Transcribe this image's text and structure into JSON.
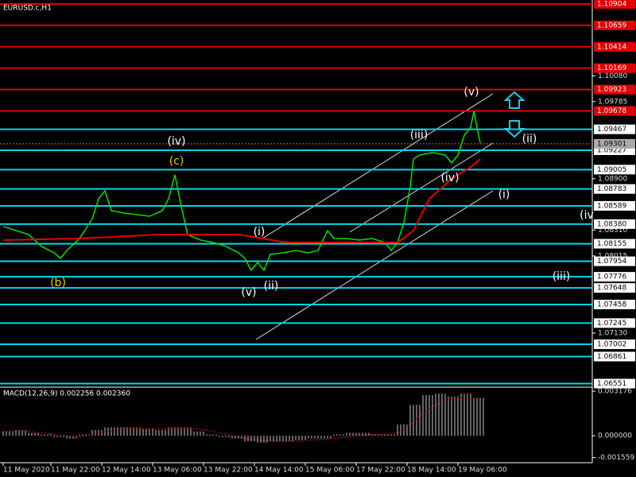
{
  "chart_data": [
    {
      "type": "line",
      "title": "EURUSD.c,H1",
      "x": [
        0,
        4,
        8,
        12,
        16,
        18,
        20,
        24,
        28,
        30,
        32,
        34,
        38,
        42,
        46,
        50,
        52,
        54,
        56,
        58,
        62,
        66,
        70,
        74,
        76,
        78,
        80,
        82,
        84,
        88,
        92,
        96,
        99,
        102,
        104,
        108,
        112,
        116,
        120,
        122,
        124,
        126,
        128,
        129,
        131,
        135,
        139,
        141,
        143,
        145,
        147,
        148,
        149,
        150
      ],
      "xlim": [
        -1,
        185
      ],
      "xticks": [
        {
          "value": 0,
          "label": "11 May 2020"
        },
        {
          "value": 15,
          "label": "11 May 22:00"
        },
        {
          "value": 31,
          "label": "12 May 14:00"
        },
        {
          "value": 47,
          "label": "13 May 06:00"
        },
        {
          "value": 63,
          "label": "13 May 22:00"
        },
        {
          "value": 79,
          "label": "14 May 14:00"
        },
        {
          "value": 95,
          "label": "15 May 06:00"
        },
        {
          "value": 111,
          "label": "17 May 22:00"
        },
        {
          "value": 127,
          "label": "18 May 14:00"
        },
        {
          "value": 143,
          "label": "19 May 06:00"
        }
      ],
      "series": [
        {
          "name": "EURUSD.c",
          "color": "#00e000",
          "values": [
            1.08352,
            1.08306,
            1.0826,
            1.08124,
            1.08051,
            1.07987,
            1.08078,
            1.08215,
            1.08443,
            1.08671,
            1.08762,
            1.08534,
            1.08507,
            1.08488,
            1.0847,
            1.08534,
            1.08671,
            1.08944,
            1.0858,
            1.0826,
            1.08197,
            1.08169,
            1.08124,
            1.08051,
            1.07987,
            1.0785,
            1.07941,
            1.0785,
            1.08033,
            1.08051,
            1.08078,
            1.08051,
            1.08078,
            1.08306,
            1.08215,
            1.08215,
            1.08197,
            1.08215,
            1.08169,
            1.08078,
            1.08169,
            1.08397,
            1.08808,
            1.09127,
            1.09172,
            1.092,
            1.09172,
            1.09081,
            1.09172,
            1.094,
            1.09491,
            1.09674,
            1.09491,
            1.09309
          ]
        },
        {
          "name": "MA",
          "color": "#e00000",
          "x": [
            0,
            24,
            49,
            74,
            89,
            124,
            129,
            134,
            141,
            147,
            150
          ],
          "values": [
            1.08197,
            1.08215,
            1.0826,
            1.0826,
            1.08169,
            1.08169,
            1.08306,
            1.08671,
            1.08899,
            1.09035,
            1.09127
          ]
        }
      ],
      "ylim": [
        1.0651,
        1.1095
      ],
      "yticks": [
        {
          "value": 1.1008,
          "label": "1.10080"
        },
        1.09785,
        {
          "value": 1.089,
          "label": "1.08900"
        },
        {
          "value": 1.0831,
          "label": "1.08310"
        },
        1.08015,
        {
          "value": 1.0713,
          "label": "1.07130"
        }
      ],
      "level_sets": [
        {
          "color": "#e00000",
          "values": [
            1.10904,
            1.10659,
            1.10414,
            1.10169,
            1.09923,
            1.09678
          ]
        },
        {
          "color": "#00d8e8",
          "values": [
            1.09467,
            1.09227,
            1.09005,
            1.08783,
            1.08589,
            {
              "value": 1.0838,
              "label": "1.08380"
            },
            1.08155,
            1.07954,
            1.07776,
            1.07648,
            1.07458,
            1.07245,
            1.07002,
            1.06861,
            1.06551
          ]
        }
      ],
      "last_price": 1.09301,
      "annotations": [
        {
          "text": "(iv)",
          "color": "#ffffff"
        },
        {
          "text": "(c)",
          "color": "#e8d000"
        },
        {
          "text": "(b)",
          "color": "#e8d000"
        },
        {
          "text": "(i)",
          "color": "#ffffff"
        },
        {
          "text": "(v)",
          "color": "#ffffff"
        },
        {
          "text": "(ii)",
          "color": "#ffffff"
        },
        {
          "text": "(iii)",
          "color": "#ffffff"
        },
        {
          "text": "(iv)",
          "color": "#ffffff"
        },
        {
          "text": "(v)",
          "color": "#ffffff"
        },
        {
          "text": "(ii)",
          "color": "#ffffff"
        },
        {
          "text": "(i)",
          "color": "#ffffff"
        },
        {
          "text": "(iv",
          "color": "#ffffff"
        },
        {
          "text": "(iii)",
          "color": "#ffffff"
        }
      ]
    },
    {
      "type": "macd",
      "title": "MACD(12,26,9) 0.002256 0.002360",
      "x": [
        0,
        4,
        8,
        12,
        16,
        20,
        24,
        28,
        32,
        36,
        40,
        44,
        48,
        52,
        56,
        60,
        64,
        68,
        72,
        76,
        80,
        84,
        88,
        92,
        96,
        100,
        104,
        108,
        112,
        116,
        120,
        124,
        128,
        132,
        136,
        140,
        144,
        148
      ],
      "series": [
        {
          "name": "MACD",
          "color": "#c8c8c8",
          "values": [
            0.0003,
            0.0004,
            0.0002,
            0.0001,
            -0.0001,
            -0.0002,
            0.0001,
            0.0004,
            0.0006,
            0.0006,
            0.0006,
            0.0005,
            0.0004,
            0.0006,
            0.0006,
            0.0003,
            0.0001,
            -0.0001,
            -0.0002,
            -0.0004,
            -0.0005,
            -0.0004,
            -0.0004,
            -0.0003,
            -0.0002,
            -0.0002,
            0.0001,
            0.0002,
            0.0002,
            0.0001,
            0.0001,
            0.0008,
            0.0022,
            0.0029,
            0.003,
            0.0028,
            0.003,
            0.0027
          ]
        },
        {
          "name": "Signal",
          "color": "#e00000",
          "values": [
            0.0003,
            0.0003,
            0.0003,
            0.0002,
            0.0001,
            0,
            -0.0001,
            0.0001,
            0.0003,
            0.0004,
            0.0005,
            0.0005,
            0.0005,
            0.0005,
            0.0005,
            0.0005,
            0.0004,
            0.0002,
            0,
            -0.0002,
            -0.0003,
            -0.0004,
            -0.0004,
            -0.0004,
            -0.0003,
            -0.0003,
            -0.0002,
            -0.0001,
            0,
            0.0001,
            0.0001,
            0.0002,
            0.0008,
            0.0016,
            0.0022,
            0.0026,
            0.0027,
            0.0026
          ]
        }
      ],
      "ylim": [
        -0.00181,
        0.00335
      ],
      "yticks": [
        0.003176,
        {
          "value": 0,
          "label": "0.000000"
        },
        -0.001559
      ]
    }
  ]
}
